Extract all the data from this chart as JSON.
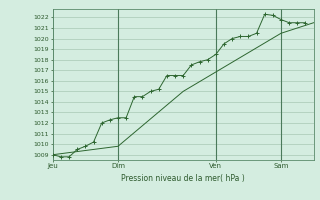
{
  "bg_color": "#d4ede0",
  "grid_color": "#a8c8b4",
  "line_color": "#2d6630",
  "marker_color": "#2d6630",
  "xlabel": "Pression niveau de la mer( hPa )",
  "ylim": [
    1008.5,
    1022.8
  ],
  "yticks": [
    1009,
    1010,
    1011,
    1012,
    1013,
    1014,
    1015,
    1016,
    1017,
    1018,
    1019,
    1020,
    1021,
    1022
  ],
  "xtick_labels": [
    "Jeu",
    "Dim",
    "Ven",
    "Sam"
  ],
  "xtick_positions": [
    0,
    48,
    120,
    168
  ],
  "vlines": [
    0,
    48,
    120,
    168
  ],
  "total_hours": 192,
  "series1": [
    [
      0,
      1009.0
    ],
    [
      6,
      1008.8
    ],
    [
      12,
      1008.8
    ],
    [
      18,
      1009.5
    ],
    [
      24,
      1009.8
    ],
    [
      30,
      1010.2
    ],
    [
      36,
      1012.0
    ],
    [
      42,
      1012.3
    ],
    [
      48,
      1012.5
    ],
    [
      54,
      1012.5
    ],
    [
      60,
      1014.5
    ],
    [
      66,
      1014.5
    ],
    [
      72,
      1015.0
    ],
    [
      78,
      1015.2
    ],
    [
      84,
      1016.5
    ],
    [
      90,
      1016.5
    ],
    [
      96,
      1016.5
    ],
    [
      102,
      1017.5
    ],
    [
      108,
      1017.8
    ],
    [
      114,
      1018.0
    ],
    [
      120,
      1018.5
    ],
    [
      126,
      1019.5
    ],
    [
      132,
      1020.0
    ],
    [
      138,
      1020.2
    ],
    [
      144,
      1020.2
    ],
    [
      150,
      1020.5
    ],
    [
      156,
      1022.3
    ],
    [
      162,
      1022.2
    ],
    [
      168,
      1021.8
    ],
    [
      174,
      1021.5
    ],
    [
      180,
      1021.5
    ],
    [
      186,
      1021.5
    ]
  ],
  "series2": [
    [
      0,
      1009.0
    ],
    [
      48,
      1009.8
    ],
    [
      96,
      1015.0
    ],
    [
      168,
      1020.5
    ],
    [
      192,
      1021.5
    ]
  ]
}
